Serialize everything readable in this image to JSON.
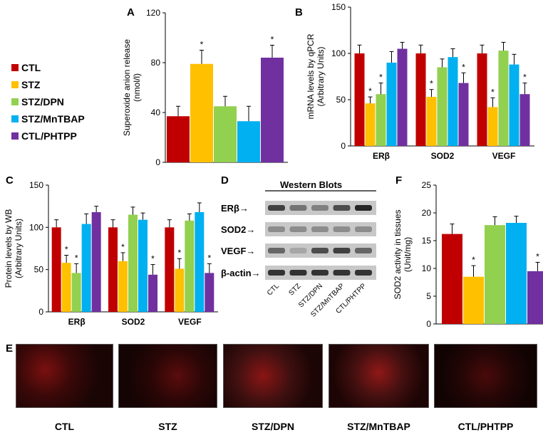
{
  "panel_labels": {
    "A": "A",
    "B": "B",
    "C": "C",
    "D": "D",
    "E": "E",
    "F": "F"
  },
  "legend": [
    {
      "name": "CTL",
      "color": "#c00000"
    },
    {
      "name": "STZ",
      "color": "#ffc000"
    },
    {
      "name": "STZ/DPN",
      "color": "#92d050"
    },
    {
      "name": "STZ/MnTBAP",
      "color": "#00b0f0"
    },
    {
      "name": "CTL/PHTPP",
      "color": "#7030a0"
    }
  ],
  "colors": [
    "#c00000",
    "#ffc000",
    "#92d050",
    "#00b0f0",
    "#7030a0"
  ],
  "chart_data": [
    {
      "id": "A",
      "type": "bar",
      "categories": [
        "CTL",
        "STZ",
        "STZ/DPN",
        "STZ/MnTBAP",
        "CTL/PHTPP"
      ],
      "values": [
        37,
        79,
        45,
        33,
        84
      ],
      "errors": [
        8,
        11,
        8,
        12,
        10
      ],
      "significance": [
        "",
        "*",
        "",
        "",
        "*"
      ],
      "ylabel": "Superoxide anion release\n(nmol/l)",
      "ylim": [
        0,
        120
      ],
      "yticks": [
        0,
        40,
        80,
        120
      ]
    },
    {
      "id": "B",
      "type": "bar",
      "categories": [
        "ERβ",
        "SOD2",
        "VEGF"
      ],
      "series": [
        {
          "name": "CTL",
          "values": [
            100,
            100,
            100
          ],
          "errors": [
            9,
            9,
            9
          ],
          "sig": [
            "",
            "",
            ""
          ]
        },
        {
          "name": "STZ",
          "values": [
            46,
            53,
            42
          ],
          "errors": [
            7,
            8,
            10
          ],
          "sig": [
            "*",
            "*",
            "*"
          ]
        },
        {
          "name": "STZ/DPN",
          "values": [
            56,
            85,
            103
          ],
          "errors": [
            12,
            9,
            9
          ],
          "sig": [
            "*",
            "",
            ""
          ]
        },
        {
          "name": "STZ/MnTBAP",
          "values": [
            90,
            96,
            88
          ],
          "errors": [
            12,
            9,
            11
          ],
          "sig": [
            "",
            "",
            ""
          ]
        },
        {
          "name": "CTL/PHTPP",
          "values": [
            105,
            68,
            56
          ],
          "errors": [
            7,
            11,
            12
          ],
          "sig": [
            "",
            "*",
            "*"
          ]
        }
      ],
      "ylabel": "mRNA levels by qPCR\n(Arbitrary Units)",
      "ylim": [
        0,
        150
      ],
      "yticks": [
        0,
        50,
        100,
        150
      ]
    },
    {
      "id": "C",
      "type": "bar",
      "categories": [
        "ERβ",
        "SOD2",
        "VEGF"
      ],
      "series": [
        {
          "name": "CTL",
          "values": [
            100,
            100,
            100
          ],
          "errors": [
            9,
            9,
            9
          ],
          "sig": [
            "",
            "",
            ""
          ]
        },
        {
          "name": "STZ",
          "values": [
            58,
            60,
            51
          ],
          "errors": [
            9,
            10,
            12
          ],
          "sig": [
            "*",
            "*",
            "*"
          ]
        },
        {
          "name": "STZ/DPN",
          "values": [
            46,
            115,
            108
          ],
          "errors": [
            11,
            9,
            8
          ],
          "sig": [
            "*",
            "",
            ""
          ]
        },
        {
          "name": "STZ/MnTBAP",
          "values": [
            104,
            109,
            118
          ],
          "errors": [
            12,
            8,
            11
          ],
          "sig": [
            "",
            "",
            ""
          ]
        },
        {
          "name": "CTL/PHTPP",
          "values": [
            118,
            44,
            46
          ],
          "errors": [
            7,
            12,
            11
          ],
          "sig": [
            "",
            "*",
            "*"
          ]
        }
      ],
      "ylabel": "Protein levels by WB\n(Arbitrary Units)",
      "ylim": [
        0,
        150
      ],
      "yticks": [
        0,
        50,
        100,
        150
      ]
    },
    {
      "id": "F",
      "type": "bar",
      "categories": [
        "CTL",
        "STZ",
        "STZ/DPN",
        "STZ/MnTBAP",
        "CTL/PHTPP"
      ],
      "values": [
        16.2,
        8.5,
        17.8,
        18.2,
        9.5
      ],
      "errors": [
        1.8,
        2.0,
        1.5,
        1.2,
        1.6
      ],
      "significance": [
        "",
        "*",
        "",
        "",
        "*"
      ],
      "ylabel": "SOD2 activity in tissues\n(Unit/mg)",
      "ylim": [
        0,
        25
      ],
      "yticks": [
        0,
        5,
        10,
        15,
        20,
        25
      ]
    }
  ],
  "western_blots": {
    "title": "Western Blots",
    "rows": [
      "ERβ",
      "SOD2",
      "VEGF",
      "β-actin"
    ],
    "lanes": [
      "CTL",
      "STZ",
      "STZ/DPN",
      "STZ/MnTBAP",
      "CTL/PHTPP"
    ]
  },
  "panel_e": {
    "labels": [
      "CTL",
      "STZ",
      "STZ/DPN",
      "STZ/MnTBAP",
      "CTL/PHTPP"
    ]
  }
}
